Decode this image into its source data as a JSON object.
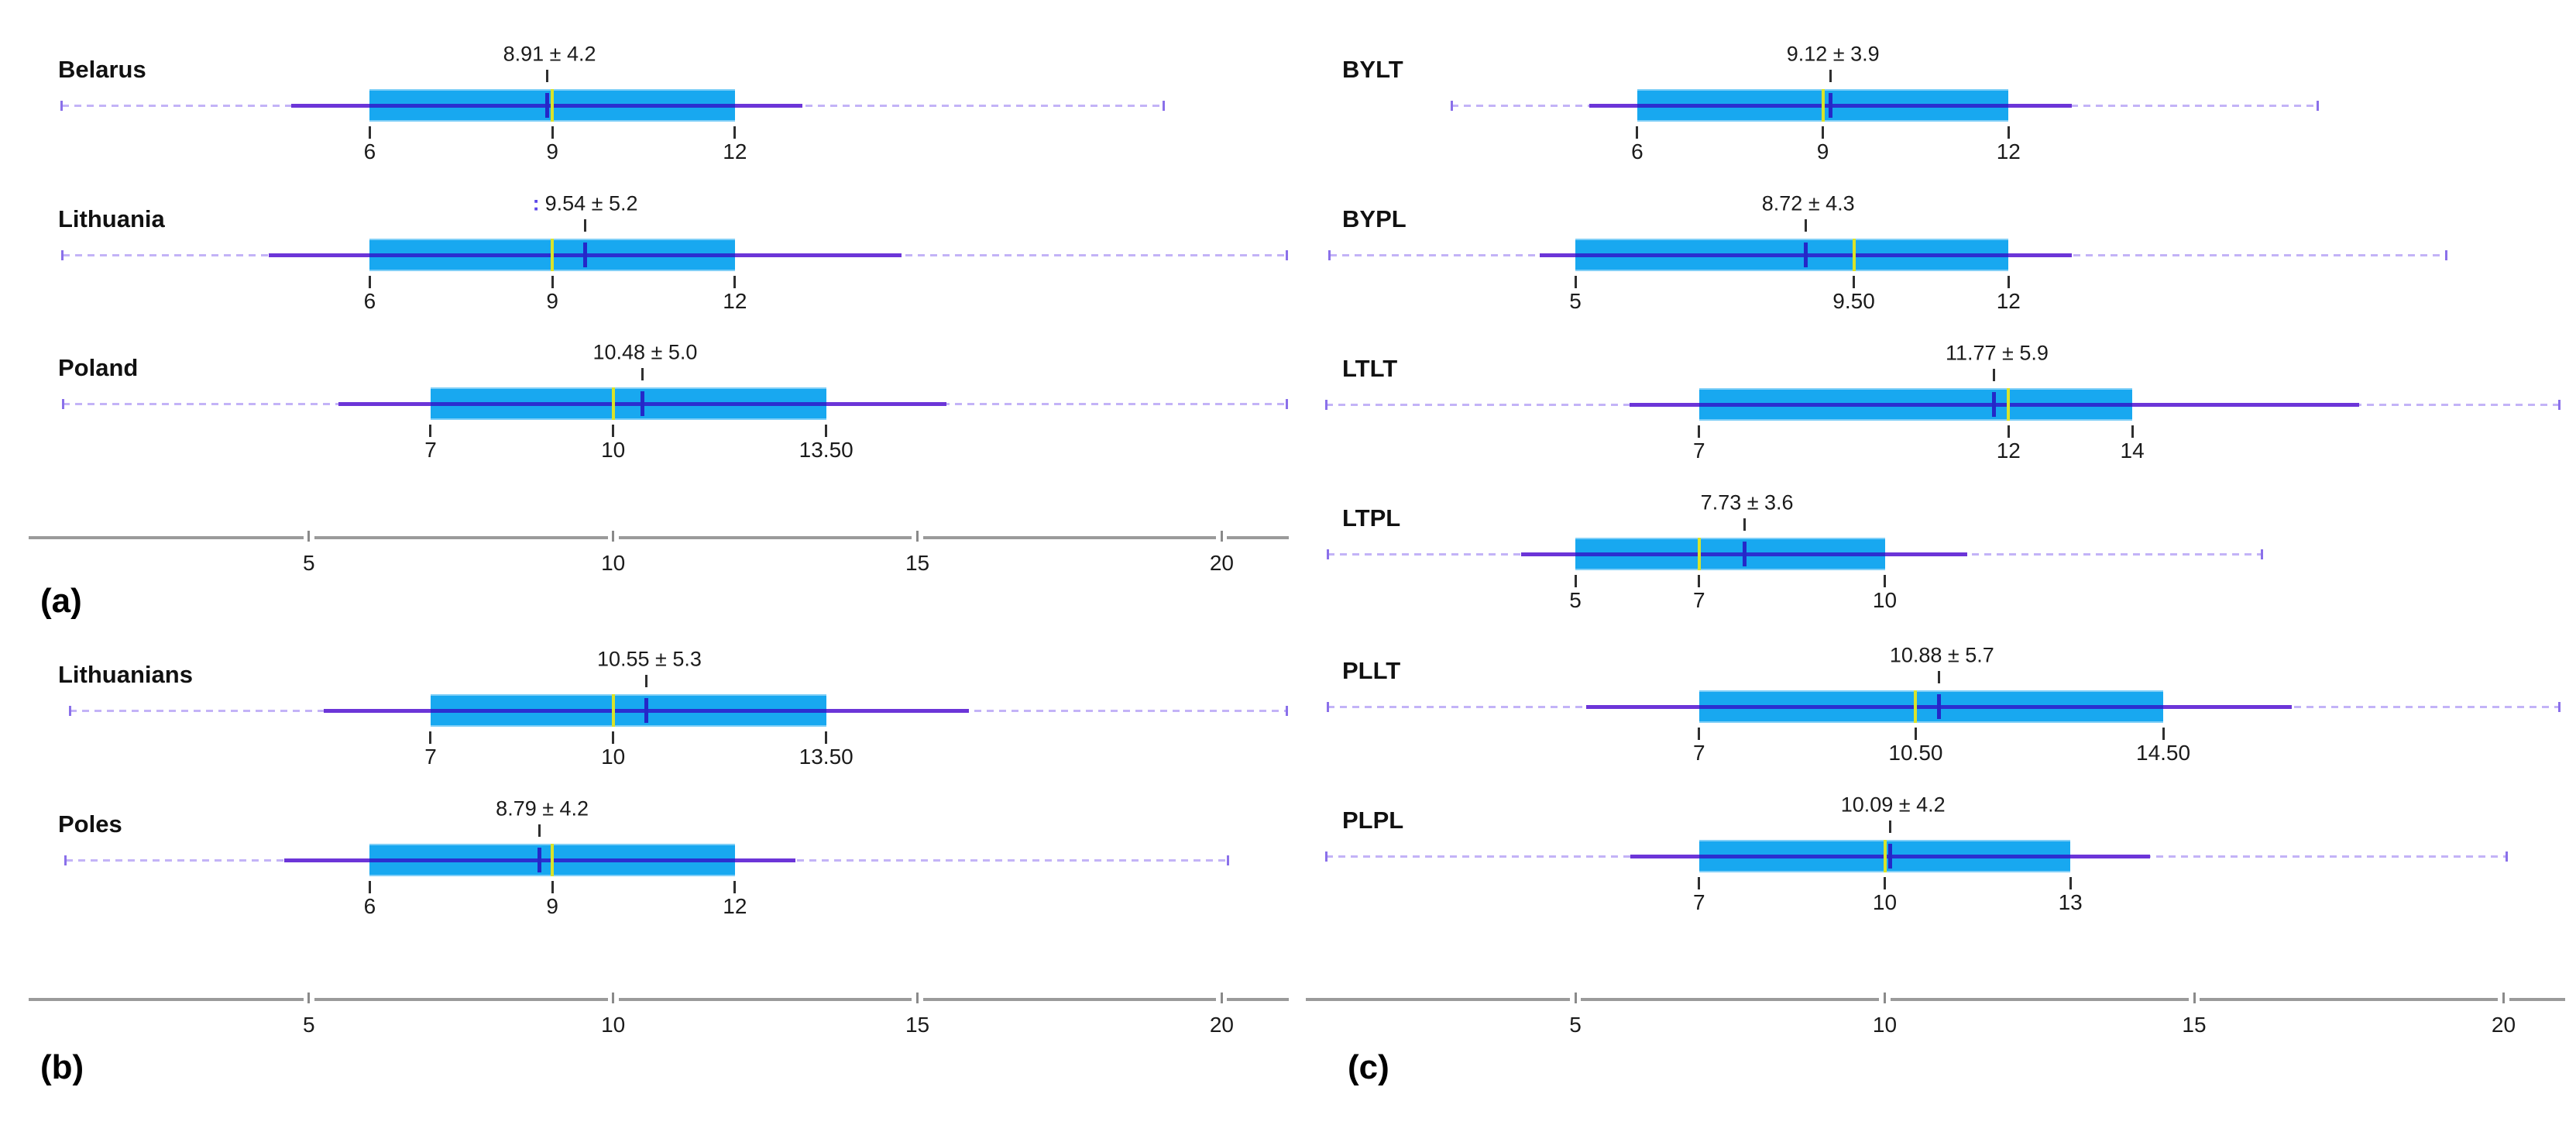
{
  "chart_data": {
    "type": "boxplot",
    "orientation": "horizontal",
    "legend": "none",
    "grid": false,
    "colors": {
      "box_fill": "#18a8f0",
      "whisker_solid": "#6c35d8",
      "whisker_inside_box": "#2b2fd0",
      "range_dashed": "#c3b3f7",
      "range_cap": "#8a70ea",
      "median_line": "#d9e32a",
      "mean_marker": "#2428c8",
      "tick": "#2f2f2f",
      "axis": "#9a9a9a",
      "text": "#111111",
      "annotation_prefix": "#5b46e8"
    },
    "panels": [
      {
        "name": "(a)",
        "axis": {
          "tick_labels": [
            "5",
            "10",
            "15",
            "20"
          ],
          "tick_values": [
            5,
            10,
            15,
            20
          ],
          "range": [
            0,
            21
          ]
        },
        "groups": [
          {
            "label": "Belarus",
            "annotation": "8.91 ± 4.2",
            "mean": 8.91,
            "sd": 4.2,
            "q1": 6,
            "median": 9,
            "q3": 12,
            "quartile_labels": [
              "6",
              "9",
              "12"
            ],
            "whisker": [
              4.71,
              13.11
            ],
            "range": [
              0.94,
              19.05
            ]
          },
          {
            "label": "Lithuania",
            "annotation_prefix": ":",
            "annotation": "9.54 ± 5.2",
            "mean": 9.54,
            "sd": 5.2,
            "q1": 6,
            "median": 9,
            "q3": 12,
            "quartile_labels": [
              "6",
              "9",
              "12"
            ],
            "whisker": [
              4.34,
              14.74
            ],
            "range": [
              0.95,
              21.07
            ]
          },
          {
            "label": "Poland",
            "annotation": "10.48 ± 5.0",
            "mean": 10.48,
            "sd": 5.0,
            "q1": 7,
            "median": 10,
            "q3": 13.5,
            "quartile_labels": [
              "7",
              "10",
              "13.50"
            ],
            "whisker": [
              5.48,
              15.48
            ],
            "range": [
              0.96,
              21.07
            ]
          }
        ]
      },
      {
        "name": "(b)",
        "axis": {
          "tick_labels": [
            "5",
            "10",
            "15",
            "20"
          ],
          "tick_values": [
            5,
            10,
            15,
            20
          ],
          "range": [
            0,
            21
          ]
        },
        "groups": [
          {
            "label": "Lithuanians",
            "annotation": "10.55 ± 5.3",
            "mean": 10.55,
            "sd": 5.3,
            "q1": 7,
            "median": 10,
            "q3": 13.5,
            "quartile_labels": [
              "7",
              "10",
              "13.50"
            ],
            "whisker": [
              5.25,
              15.85
            ],
            "range": [
              1.07,
              21.07
            ]
          },
          {
            "label": "Poles",
            "annotation": "8.79 ± 4.2",
            "mean": 8.79,
            "sd": 4.2,
            "q1": 6,
            "median": 9,
            "q3": 12,
            "quartile_labels": [
              "6",
              "9",
              "12"
            ],
            "whisker": [
              4.59,
              12.99
            ],
            "range": [
              1.0,
              20.1
            ]
          }
        ]
      },
      {
        "name": "(c)",
        "axis": {
          "tick_labels": [
            "5",
            "10",
            "15",
            "20"
          ],
          "tick_values": [
            5,
            10,
            15,
            20
          ],
          "range": [
            0,
            21
          ]
        },
        "groups": [
          {
            "label": "BYLT",
            "annotation": "9.12 ± 3.9",
            "mean": 9.12,
            "sd": 3.9,
            "q1": 6,
            "median": 9,
            "q3": 12,
            "quartile_labels": [
              "6",
              "9",
              "12"
            ],
            "whisker": [
              5.22,
              13.02
            ],
            "range": [
              3.0,
              17.0
            ]
          },
          {
            "label": "BYPL",
            "annotation": "8.72 ± 4.3",
            "mean": 8.72,
            "sd": 4.3,
            "q1": 5,
            "median": 9.5,
            "q3": 12,
            "quartile_labels": [
              "5",
              "9.50",
              "12"
            ],
            "whisker": [
              4.42,
              13.02
            ],
            "range": [
              1.03,
              19.07
            ]
          },
          {
            "label": "LTLT",
            "annotation": "11.77 ± 5.9",
            "mean": 11.77,
            "sd": 5.9,
            "q1": 7,
            "median": 12,
            "q3": 14,
            "quartile_labels": [
              "7",
              "12",
              "14"
            ],
            "whisker": [
              5.87,
              17.67
            ],
            "range": [
              0.97,
              20.9
            ]
          },
          {
            "label": "LTPL",
            "annotation": "7.73 ± 3.6",
            "mean": 7.73,
            "sd": 3.6,
            "q1": 5,
            "median": 7,
            "q3": 10,
            "quartile_labels": [
              "5",
              "7",
              "10"
            ],
            "whisker": [
              4.13,
              11.33
            ],
            "range": [
              1.0,
              16.1
            ]
          },
          {
            "label": "PLLT",
            "annotation": "10.88 ± 5.7",
            "mean": 10.88,
            "sd": 5.7,
            "q1": 7,
            "median": 10.5,
            "q3": 14.5,
            "quartile_labels": [
              "7",
              "10.50",
              "14.50"
            ],
            "whisker": [
              5.18,
              16.58
            ],
            "range": [
              1.0,
              20.9
            ]
          },
          {
            "label": "PLPL",
            "annotation": "10.09 ± 4.2",
            "mean": 10.09,
            "sd": 4.2,
            "q1": 7,
            "median": 10,
            "q3": 13,
            "quartile_labels": [
              "7",
              "10",
              "13"
            ],
            "whisker": [
              5.89,
              14.29
            ],
            "range": [
              0.97,
              20.05
            ]
          }
        ]
      }
    ]
  }
}
